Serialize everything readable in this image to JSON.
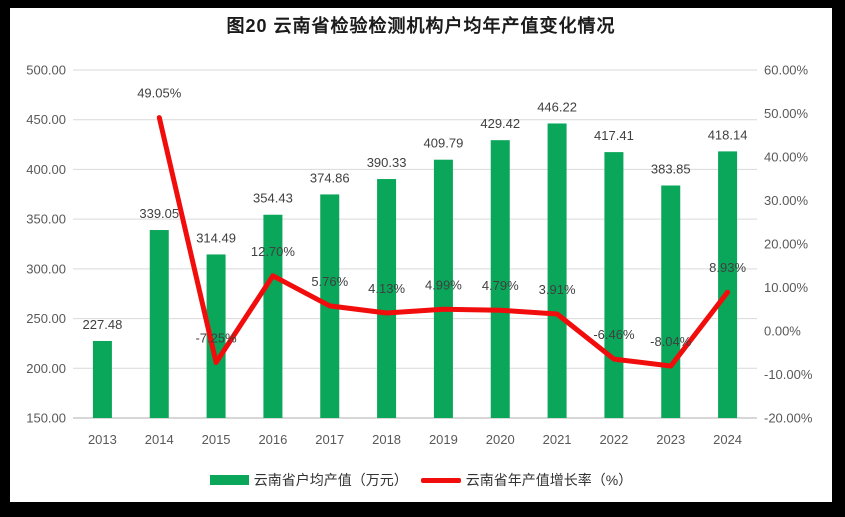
{
  "title": "图20 云南省检验检测机构户均年产值变化情况",
  "chart_data": {
    "type": "combo (bar + line, dual axis)",
    "title": "图20 云南省检验检测机构户均年产值变化情况",
    "categories": [
      "2013",
      "2014",
      "2015",
      "2016",
      "2017",
      "2018",
      "2019",
      "2020",
      "2021",
      "2022",
      "2023",
      "2024"
    ],
    "series": [
      {
        "name": "云南省户均产值（万元）",
        "type": "bar",
        "axis": "left",
        "color": "#0AA659",
        "values": [
          227.48,
          339.05,
          314.49,
          354.43,
          374.86,
          390.33,
          409.79,
          429.42,
          446.22,
          417.41,
          383.85,
          418.14
        ],
        "labels": [
          "227.48",
          "339.05",
          "314.49",
          "354.43",
          "374.86",
          "390.33",
          "409.79",
          "429.42",
          "446.22",
          "417.41",
          "383.85",
          "418.14"
        ]
      },
      {
        "name": "云南省年产值增长率（%）",
        "type": "line",
        "axis": "right",
        "color": "#F20D0D",
        "values": [
          null,
          49.05,
          -7.25,
          12.7,
          5.76,
          4.13,
          4.99,
          4.79,
          3.91,
          -6.46,
          -8.04,
          8.93
        ],
        "labels": [
          null,
          "49.05%",
          "-7.25%",
          "12.70%",
          "5.76%",
          "4.13%",
          "4.99%",
          "4.79%",
          "3.91%",
          "-6.46%",
          "-8.04%",
          "8.93%"
        ]
      }
    ],
    "left_axis": {
      "min": 150,
      "max": 500,
      "step": 50,
      "tick_values": [
        500,
        450,
        400,
        350,
        300,
        250,
        200,
        150
      ],
      "tick_labels": [
        "500.00",
        "450.00",
        "400.00",
        "350.00",
        "300.00",
        "250.00",
        "200.00",
        "150.00"
      ]
    },
    "right_axis": {
      "min": -20,
      "max": 60,
      "step": 10,
      "tick_values": [
        60,
        50,
        40,
        30,
        20,
        10,
        0,
        -10,
        -20
      ],
      "tick_labels": [
        "60.00%",
        "50.00%",
        "40.00%",
        "30.00%",
        "20.00%",
        "10.00%",
        "0.00%",
        "-10.00%",
        "-20.00%"
      ]
    },
    "grid": true,
    "legend_position": "bottom"
  },
  "colors": {
    "frame": "#000000",
    "canvas": "#FFFFFF",
    "bar_green": "#0AA659",
    "line_red": "#F20D0D",
    "gridline": "#D9D9D9",
    "axis_line": "#BFBFBF",
    "axis_text": "#595959",
    "data_label": "#404040",
    "title_text": "#1B1B1B",
    "legend_text": "#333333"
  }
}
